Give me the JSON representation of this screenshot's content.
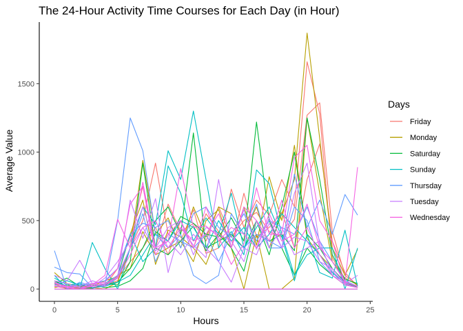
{
  "chart_data": {
    "type": "line",
    "title": "The 24-Hour Activity Time Courses for Each Day (in Hour)",
    "xlabel": "Hours",
    "ylabel": "Average Value",
    "xlim": [
      -1.2,
      25.2
    ],
    "ylim": [
      -90,
      1950
    ],
    "xticks": [
      0,
      5,
      10,
      15,
      20,
      25
    ],
    "yticks": [
      0,
      500,
      1000,
      1500
    ],
    "grid": false,
    "legend": {
      "title": "Days",
      "position": "right"
    },
    "x": [
      0,
      1,
      2,
      3,
      4,
      5,
      6,
      7,
      8,
      9,
      10,
      11,
      12,
      13,
      14,
      15,
      16,
      17,
      18,
      19,
      20,
      21,
      22,
      23,
      24
    ],
    "series": [
      {
        "name": "Friday",
        "color": "#F8766D",
        "values": [
          20,
          5,
          0,
          10,
          30,
          60,
          300,
          500,
          920,
          400,
          350,
          580,
          260,
          300,
          730,
          450,
          650,
          540,
          800,
          600,
          1660,
          1280,
          230,
          60,
          10
        ]
      },
      {
        "name": "Friday",
        "color": "#F8766D",
        "values": [
          0,
          0,
          0,
          0,
          0,
          0,
          0,
          0,
          0,
          0,
          0,
          0,
          0,
          0,
          0,
          0,
          0,
          0,
          0,
          0,
          0,
          0,
          0,
          0,
          0
        ]
      },
      {
        "name": "Friday",
        "color": "#F8766D",
        "values": [
          60,
          20,
          5,
          40,
          20,
          150,
          380,
          750,
          300,
          620,
          420,
          480,
          350,
          600,
          380,
          500,
          560,
          420,
          380,
          510,
          1270,
          1360,
          420,
          100,
          30
        ]
      },
      {
        "name": "Friday",
        "color": "#F8766D",
        "values": [
          30,
          10,
          20,
          5,
          40,
          80,
          200,
          300,
          450,
          250,
          500,
          300,
          550,
          420,
          300,
          700,
          380,
          450,
          560,
          300,
          800,
          1060,
          350,
          120,
          20
        ]
      },
      {
        "name": "Monday",
        "color": "#B79F00",
        "values": [
          120,
          40,
          20,
          10,
          0,
          50,
          300,
          940,
          400,
          520,
          300,
          600,
          380,
          600,
          550,
          400,
          600,
          300,
          550,
          800,
          1870,
          1100,
          300,
          100,
          290
        ]
      },
      {
        "name": "Monday",
        "color": "#B79F00",
        "values": [
          0,
          0,
          0,
          0,
          0,
          0,
          0,
          0,
          0,
          0,
          0,
          0,
          0,
          0,
          0,
          0,
          0,
          0,
          0,
          0,
          0,
          0,
          0,
          0,
          0
        ]
      },
      {
        "name": "Monday",
        "color": "#B79F00",
        "values": [
          40,
          0,
          10,
          30,
          20,
          100,
          150,
          420,
          250,
          300,
          350,
          200,
          500,
          580,
          300,
          0,
          400,
          0,
          0,
          80,
          1250,
          700,
          200,
          80,
          30
        ]
      },
      {
        "name": "Monday",
        "color": "#B79F00",
        "values": [
          10,
          30,
          5,
          20,
          60,
          90,
          400,
          650,
          180,
          430,
          380,
          300,
          180,
          420,
          300,
          600,
          320,
          820,
          500,
          1050,
          370,
          250,
          150,
          40,
          10
        ]
      },
      {
        "name": "Saturday",
        "color": "#00BA38",
        "values": [
          40,
          80,
          20,
          30,
          10,
          20,
          60,
          150,
          420,
          350,
          530,
          480,
          400,
          380,
          520,
          350,
          1220,
          500,
          300,
          100,
          300,
          180,
          100,
          30,
          20
        ]
      },
      {
        "name": "Saturday",
        "color": "#00BA38",
        "values": [
          0,
          0,
          0,
          0,
          0,
          0,
          0,
          0,
          0,
          0,
          0,
          0,
          0,
          0,
          0,
          0,
          0,
          0,
          0,
          0,
          0,
          0,
          0,
          0,
          0
        ]
      },
      {
        "name": "Saturday",
        "color": "#00BA38",
        "values": [
          20,
          10,
          0,
          20,
          40,
          30,
          200,
          920,
          300,
          250,
          350,
          460,
          280,
          400,
          300,
          130,
          500,
          350,
          400,
          280,
          1250,
          800,
          250,
          70,
          40
        ]
      },
      {
        "name": "Saturday",
        "color": "#00BA38",
        "values": [
          60,
          20,
          10,
          5,
          30,
          50,
          150,
          300,
          500,
          600,
          400,
          1140,
          300,
          350,
          400,
          300,
          500,
          250,
          600,
          1000,
          400,
          300,
          150,
          50,
          10
        ]
      },
      {
        "name": "Sunday",
        "color": "#00BFC4",
        "values": [
          100,
          0,
          0,
          340,
          150,
          0,
          300,
          600,
          470,
          1010,
          800,
          1300,
          800,
          300,
          420,
          250,
          870,
          770,
          400,
          100,
          250,
          300,
          300,
          0,
          300
        ]
      },
      {
        "name": "Sunday",
        "color": "#00BFC4",
        "values": [
          0,
          0,
          0,
          0,
          0,
          0,
          0,
          0,
          0,
          0,
          0,
          0,
          0,
          0,
          0,
          0,
          0,
          0,
          0,
          0,
          0,
          0,
          0,
          0,
          0
        ]
      },
      {
        "name": "Sunday",
        "color": "#00BFC4",
        "values": [
          30,
          60,
          30,
          20,
          40,
          100,
          400,
          200,
          300,
          900,
          700,
          350,
          520,
          400,
          700,
          300,
          450,
          600,
          380,
          60,
          400,
          120,
          80,
          430,
          20
        ]
      },
      {
        "name": "Sunday",
        "color": "#00BFC4",
        "values": [
          80,
          30,
          40,
          10,
          20,
          50,
          100,
          250,
          400,
          350,
          500,
          450,
          300,
          500,
          350,
          450,
          300,
          400,
          550,
          450,
          350,
          250,
          120,
          40,
          10
        ]
      },
      {
        "name": "Thursday",
        "color": "#619CFF",
        "values": [
          280,
          0,
          50,
          20,
          30,
          500,
          1250,
          1010,
          400,
          300,
          400,
          100,
          40,
          100,
          550,
          400,
          620,
          300,
          300,
          840,
          450,
          650,
          400,
          690,
          540
        ]
      },
      {
        "name": "Thursday",
        "color": "#619CFF",
        "values": [
          0,
          0,
          0,
          0,
          0,
          0,
          0,
          0,
          0,
          0,
          0,
          0,
          0,
          0,
          0,
          0,
          0,
          0,
          0,
          0,
          0,
          0,
          0,
          0,
          0
        ]
      },
      {
        "name": "Thursday",
        "color": "#619CFF",
        "values": [
          160,
          120,
          110,
          10,
          20,
          80,
          300,
          550,
          200,
          400,
          350,
          300,
          400,
          200,
          400,
          550,
          350,
          500,
          450,
          400,
          600,
          350,
          200,
          60,
          20
        ]
      },
      {
        "name": "Thursday",
        "color": "#619CFF",
        "values": [
          50,
          20,
          30,
          40,
          60,
          150,
          400,
          480,
          450,
          500,
          300,
          550,
          600,
          450,
          380,
          300,
          400,
          350,
          300,
          600,
          500,
          200,
          100,
          30,
          10
        ]
      },
      {
        "name": "Tuesday",
        "color": "#C77CFF",
        "values": [
          100,
          60,
          210,
          40,
          20,
          90,
          650,
          370,
          660,
          120,
          450,
          320,
          230,
          800,
          300,
          580,
          290,
          520,
          300,
          700,
          920,
          320,
          130,
          40,
          100
        ]
      },
      {
        "name": "Tuesday",
        "color": "#C77CFF",
        "values": [
          0,
          0,
          0,
          0,
          0,
          0,
          0,
          0,
          0,
          0,
          0,
          0,
          0,
          0,
          0,
          0,
          0,
          0,
          0,
          0,
          0,
          0,
          0,
          0,
          0
        ]
      },
      {
        "name": "Tuesday",
        "color": "#C77CFF",
        "values": [
          30,
          10,
          20,
          60,
          30,
          100,
          300,
          450,
          280,
          350,
          250,
          400,
          300,
          200,
          50,
          300,
          250,
          480,
          300,
          380,
          350,
          200,
          150,
          40,
          10
        ]
      },
      {
        "name": "Tuesday",
        "color": "#C77CFF",
        "values": [
          60,
          40,
          10,
          20,
          80,
          200,
          350,
          600,
          300,
          450,
          500,
          250,
          450,
          400,
          350,
          200,
          500,
          300,
          450,
          250,
          300,
          350,
          100,
          50,
          20
        ]
      },
      {
        "name": "Wednesday",
        "color": "#F564E3",
        "values": [
          50,
          10,
          0,
          30,
          100,
          510,
          300,
          780,
          300,
          350,
          880,
          450,
          460,
          380,
          180,
          330,
          740,
          400,
          400,
          960,
          1050,
          500,
          350,
          40,
          890
        ]
      },
      {
        "name": "Wednesday",
        "color": "#F564E3",
        "values": [
          0,
          0,
          0,
          0,
          0,
          0,
          0,
          0,
          0,
          0,
          0,
          0,
          0,
          0,
          0,
          0,
          0,
          0,
          0,
          0,
          0,
          0,
          0,
          0,
          0
        ]
      },
      {
        "name": "Wednesday",
        "color": "#F564E3",
        "values": [
          40,
          20,
          10,
          40,
          50,
          150,
          620,
          750,
          250,
          400,
          500,
          300,
          600,
          350,
          450,
          400,
          300,
          550,
          350,
          400,
          620,
          300,
          200,
          50,
          20
        ]
      },
      {
        "name": "Wednesday",
        "color": "#F564E3",
        "values": [
          20,
          10,
          0,
          20,
          40,
          80,
          250,
          450,
          500,
          300,
          450,
          350,
          400,
          550,
          300,
          600,
          500,
          350,
          650,
          300,
          450,
          250,
          100,
          30,
          10
        ]
      }
    ]
  }
}
